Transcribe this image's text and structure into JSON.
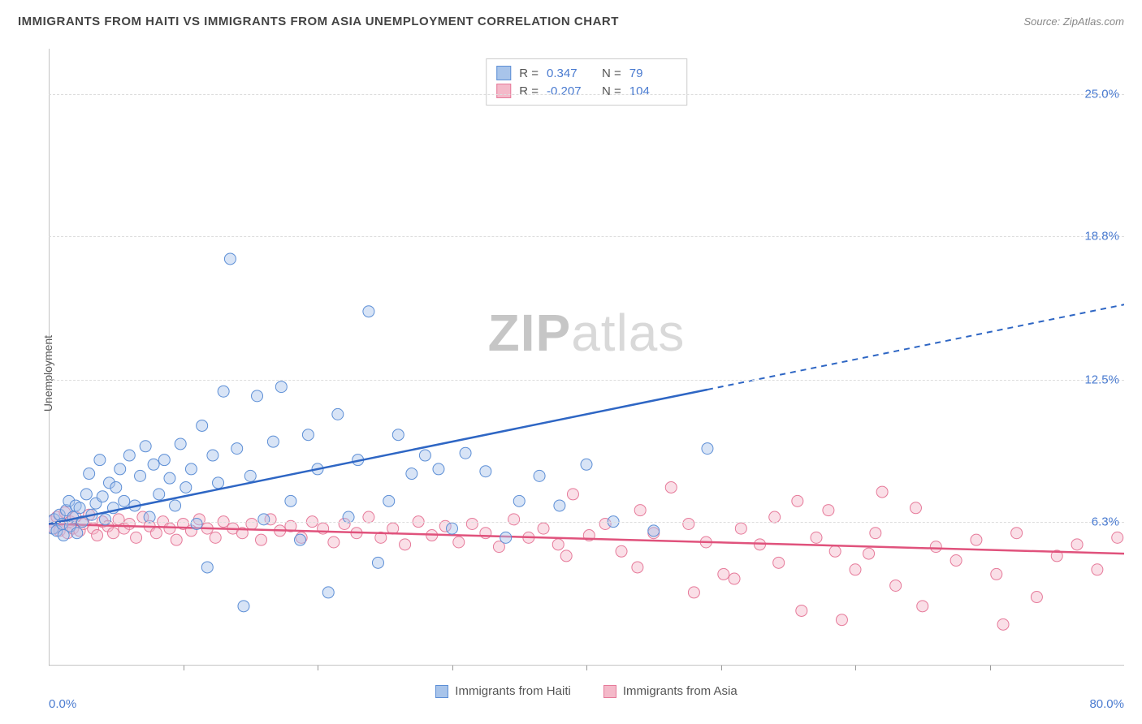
{
  "header": {
    "title": "IMMIGRANTS FROM HAITI VS IMMIGRANTS FROM ASIA UNEMPLOYMENT CORRELATION CHART",
    "source_prefix": "Source: ",
    "source": "ZipAtlas.com"
  },
  "ylabel": "Unemployment",
  "watermark_a": "ZIP",
  "watermark_b": "atlas",
  "axes": {
    "xmin": 0,
    "xmax": 80,
    "ymin": 0,
    "ymax": 27,
    "origin_label": "0.0%",
    "xmax_label": "80.0%",
    "yticks": [
      {
        "v": 6.3,
        "label": "6.3%"
      },
      {
        "v": 12.5,
        "label": "12.5%"
      },
      {
        "v": 18.8,
        "label": "18.8%"
      },
      {
        "v": 25.0,
        "label": "25.0%"
      }
    ],
    "xticks_minor": [
      10,
      20,
      30,
      40,
      50,
      60,
      70
    ],
    "grid_color": "#dddddd",
    "axis_color": "#888888",
    "tick_label_color": "#4a7bd0"
  },
  "series": {
    "haiti": {
      "label": "Immigrants from Haiti",
      "fill": "#a8c4ea",
      "stroke": "#5d8fd6",
      "fill_opacity": 0.45,
      "line_color": "#2e66c4",
      "marker_radius": 7,
      "R_label": "R =",
      "R": "0.347",
      "N_label": "N =",
      "N": "79",
      "trend": {
        "x1": 0,
        "y1": 6.2,
        "x2": 80,
        "y2": 15.8,
        "solid_until_x": 49
      },
      "points": [
        [
          0.3,
          6.0
        ],
        [
          0.4,
          6.4
        ],
        [
          0.6,
          5.9
        ],
        [
          0.8,
          6.6
        ],
        [
          1.0,
          6.2
        ],
        [
          1.1,
          5.7
        ],
        [
          1.3,
          6.8
        ],
        [
          1.5,
          7.2
        ],
        [
          1.6,
          6.1
        ],
        [
          1.8,
          6.5
        ],
        [
          2.0,
          7.0
        ],
        [
          2.1,
          5.8
        ],
        [
          2.3,
          6.9
        ],
        [
          2.5,
          6.3
        ],
        [
          2.8,
          7.5
        ],
        [
          3.0,
          8.4
        ],
        [
          3.2,
          6.6
        ],
        [
          3.5,
          7.1
        ],
        [
          3.8,
          9.0
        ],
        [
          4.0,
          7.4
        ],
        [
          4.2,
          6.4
        ],
        [
          4.5,
          8.0
        ],
        [
          4.8,
          6.9
        ],
        [
          5.0,
          7.8
        ],
        [
          5.3,
          8.6
        ],
        [
          5.6,
          7.2
        ],
        [
          6.0,
          9.2
        ],
        [
          6.4,
          7.0
        ],
        [
          6.8,
          8.3
        ],
        [
          7.2,
          9.6
        ],
        [
          7.5,
          6.5
        ],
        [
          7.8,
          8.8
        ],
        [
          8.2,
          7.5
        ],
        [
          8.6,
          9.0
        ],
        [
          9.0,
          8.2
        ],
        [
          9.4,
          7.0
        ],
        [
          9.8,
          9.7
        ],
        [
          10.2,
          7.8
        ],
        [
          10.6,
          8.6
        ],
        [
          11.0,
          6.2
        ],
        [
          11.4,
          10.5
        ],
        [
          11.8,
          4.3
        ],
        [
          12.2,
          9.2
        ],
        [
          12.6,
          8.0
        ],
        [
          13.0,
          12.0
        ],
        [
          13.5,
          17.8
        ],
        [
          14.0,
          9.5
        ],
        [
          14.5,
          2.6
        ],
        [
          15.0,
          8.3
        ],
        [
          15.5,
          11.8
        ],
        [
          16.0,
          6.4
        ],
        [
          16.7,
          9.8
        ],
        [
          17.3,
          12.2
        ],
        [
          18.0,
          7.2
        ],
        [
          18.7,
          5.5
        ],
        [
          19.3,
          10.1
        ],
        [
          20.0,
          8.6
        ],
        [
          20.8,
          3.2
        ],
        [
          21.5,
          11.0
        ],
        [
          22.3,
          6.5
        ],
        [
          23.0,
          9.0
        ],
        [
          23.8,
          15.5
        ],
        [
          24.5,
          4.5
        ],
        [
          25.3,
          7.2
        ],
        [
          26.0,
          10.1
        ],
        [
          27.0,
          8.4
        ],
        [
          28.0,
          9.2
        ],
        [
          29.0,
          8.6
        ],
        [
          30.0,
          6.0
        ],
        [
          31.0,
          9.3
        ],
        [
          32.5,
          8.5
        ],
        [
          34.0,
          5.6
        ],
        [
          35.0,
          7.2
        ],
        [
          36.5,
          8.3
        ],
        [
          38.0,
          7.0
        ],
        [
          40.0,
          8.8
        ],
        [
          42.0,
          6.3
        ],
        [
          45.0,
          5.9
        ],
        [
          49.0,
          9.5
        ]
      ]
    },
    "asia": {
      "label": "Immigrants from Asia",
      "fill": "#f4b9c9",
      "stroke": "#e67a9a",
      "fill_opacity": 0.45,
      "line_color": "#e0527c",
      "marker_radius": 7,
      "R_label": "R =",
      "R": "-0.207",
      "N_label": "N =",
      "N": "104",
      "trend": {
        "x1": 0,
        "y1": 6.2,
        "x2": 80,
        "y2": 4.9,
        "solid_until_x": 80
      },
      "points": [
        [
          0.2,
          6.3
        ],
        [
          0.4,
          6.0
        ],
        [
          0.6,
          6.5
        ],
        [
          0.8,
          5.9
        ],
        [
          1.0,
          6.2
        ],
        [
          1.2,
          6.7
        ],
        [
          1.4,
          5.8
        ],
        [
          1.6,
          6.3
        ],
        [
          1.8,
          6.0
        ],
        [
          2.0,
          6.5
        ],
        [
          2.3,
          5.9
        ],
        [
          2.6,
          6.2
        ],
        [
          3.0,
          6.6
        ],
        [
          3.3,
          6.0
        ],
        [
          3.6,
          5.7
        ],
        [
          4.0,
          6.3
        ],
        [
          4.4,
          6.1
        ],
        [
          4.8,
          5.8
        ],
        [
          5.2,
          6.4
        ],
        [
          5.6,
          6.0
        ],
        [
          6.0,
          6.2
        ],
        [
          6.5,
          5.6
        ],
        [
          7.0,
          6.5
        ],
        [
          7.5,
          6.1
        ],
        [
          8.0,
          5.8
        ],
        [
          8.5,
          6.3
        ],
        [
          9.0,
          6.0
        ],
        [
          9.5,
          5.5
        ],
        [
          10.0,
          6.2
        ],
        [
          10.6,
          5.9
        ],
        [
          11.2,
          6.4
        ],
        [
          11.8,
          6.0
        ],
        [
          12.4,
          5.6
        ],
        [
          13.0,
          6.3
        ],
        [
          13.7,
          6.0
        ],
        [
          14.4,
          5.8
        ],
        [
          15.1,
          6.2
        ],
        [
          15.8,
          5.5
        ],
        [
          16.5,
          6.4
        ],
        [
          17.2,
          5.9
        ],
        [
          18.0,
          6.1
        ],
        [
          18.8,
          5.6
        ],
        [
          19.6,
          6.3
        ],
        [
          20.4,
          6.0
        ],
        [
          21.2,
          5.4
        ],
        [
          22.0,
          6.2
        ],
        [
          22.9,
          5.8
        ],
        [
          23.8,
          6.5
        ],
        [
          24.7,
          5.6
        ],
        [
          25.6,
          6.0
        ],
        [
          26.5,
          5.3
        ],
        [
          27.5,
          6.3
        ],
        [
          28.5,
          5.7
        ],
        [
          29.5,
          6.1
        ],
        [
          30.5,
          5.4
        ],
        [
          31.5,
          6.2
        ],
        [
          32.5,
          5.8
        ],
        [
          33.5,
          5.2
        ],
        [
          34.6,
          6.4
        ],
        [
          35.7,
          5.6
        ],
        [
          36.8,
          6.0
        ],
        [
          37.9,
          5.3
        ],
        [
          39.0,
          7.5
        ],
        [
          40.2,
          5.7
        ],
        [
          41.4,
          6.2
        ],
        [
          42.6,
          5.0
        ],
        [
          43.8,
          4.3
        ],
        [
          45.0,
          5.8
        ],
        [
          46.3,
          7.8
        ],
        [
          47.6,
          6.2
        ],
        [
          48.9,
          5.4
        ],
        [
          50.2,
          4.0
        ],
        [
          51.5,
          6.0
        ],
        [
          52.9,
          5.3
        ],
        [
          54.3,
          4.5
        ],
        [
          55.7,
          7.2
        ],
        [
          57.1,
          5.6
        ],
        [
          58.5,
          5.0
        ],
        [
          60.0,
          4.2
        ],
        [
          61.5,
          5.8
        ],
        [
          63.0,
          3.5
        ],
        [
          64.5,
          6.9
        ],
        [
          66.0,
          5.2
        ],
        [
          67.5,
          4.6
        ],
        [
          69.0,
          5.5
        ],
        [
          70.5,
          4.0
        ],
        [
          72.0,
          5.8
        ],
        [
          73.5,
          3.0
        ],
        [
          75.0,
          4.8
        ],
        [
          76.5,
          5.3
        ],
        [
          78.0,
          4.2
        ],
        [
          79.5,
          5.6
        ],
        [
          56.0,
          2.4
        ],
        [
          59.0,
          2.0
        ],
        [
          62.0,
          7.6
        ],
        [
          65.0,
          2.6
        ],
        [
          48.0,
          3.2
        ],
        [
          51.0,
          3.8
        ],
        [
          44.0,
          6.8
        ],
        [
          38.5,
          4.8
        ],
        [
          71.0,
          1.8
        ],
        [
          54.0,
          6.5
        ],
        [
          58.0,
          6.8
        ],
        [
          61.0,
          4.9
        ]
      ]
    }
  }
}
